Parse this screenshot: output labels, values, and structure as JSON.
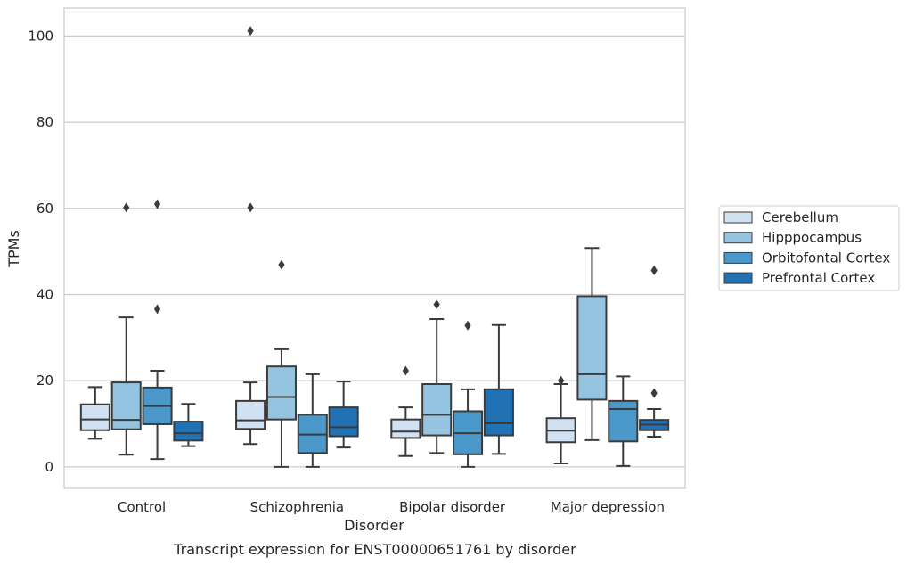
{
  "caption": "Transcript expression for ENST00000651761 by disorder",
  "chart_data": {
    "type": "box",
    "xlabel": "Disorder",
    "ylabel": "TPMs",
    "ylim": [
      -5,
      106.5
    ],
    "yticks": [
      0,
      20,
      40,
      60,
      80,
      100
    ],
    "yticklabels": [
      "0",
      "20",
      "40",
      "60",
      "80",
      "100"
    ],
    "grid": "horizontal",
    "legend_position": "right",
    "categories": [
      "Control",
      "Schizophrenia",
      "Bipolar disorder",
      "Major depression"
    ],
    "series": [
      {
        "name": "Cerebellum",
        "color": "#d0e1f2",
        "boxes": [
          {
            "whislo": 6.5,
            "q1": 8.5,
            "med": 11,
            "q3": 14.5,
            "whishi": 18.5,
            "fliers": []
          },
          {
            "whislo": 5.3,
            "q1": 8.8,
            "med": 10.8,
            "q3": 15.3,
            "whishi": 19.6,
            "fliers": [
              101.2,
              60.2
            ]
          },
          {
            "whislo": 2.5,
            "q1": 6.7,
            "med": 8.2,
            "q3": 11,
            "whishi": 13.8,
            "fliers": [
              22.3
            ]
          },
          {
            "whislo": 0.8,
            "q1": 5.7,
            "med": 8.4,
            "q3": 11.3,
            "whishi": 19.2,
            "fliers": [
              20
            ]
          }
        ]
      },
      {
        "name": "Hipppocampus",
        "color": "#94c4df",
        "boxes": [
          {
            "whislo": 2.8,
            "q1": 8.7,
            "med": 10.9,
            "q3": 19.6,
            "whishi": 34.7,
            "fliers": [
              60.2
            ]
          },
          {
            "whislo": 0,
            "q1": 11,
            "med": 16.2,
            "q3": 23.3,
            "whishi": 27.3,
            "fliers": [
              46.9
            ]
          },
          {
            "whislo": 3.2,
            "q1": 7.3,
            "med": 12.1,
            "q3": 19.2,
            "whishi": 34.3,
            "fliers": [
              37.7
            ]
          },
          {
            "whislo": 6.2,
            "q1": 15.6,
            "med": 21.5,
            "q3": 39.6,
            "whishi": 50.8,
            "fliers": []
          }
        ]
      },
      {
        "name": "Orbitofontal Cortex",
        "color": "#4a98c9",
        "boxes": [
          {
            "whislo": 1.8,
            "q1": 9.9,
            "med": 14.1,
            "q3": 18.4,
            "whishi": 22.3,
            "fliers": [
              61,
              36.6
            ]
          },
          {
            "whislo": 0,
            "q1": 3.2,
            "med": 7.5,
            "q3": 12.1,
            "whishi": 21.5,
            "fliers": []
          },
          {
            "whislo": 0,
            "q1": 2.9,
            "med": 7.8,
            "q3": 12.9,
            "whishi": 18,
            "fliers": [
              32.8
            ]
          },
          {
            "whislo": 0.2,
            "q1": 5.9,
            "med": 13.4,
            "q3": 15.3,
            "whishi": 21,
            "fliers": []
          }
        ]
      },
      {
        "name": "Prefrontal Cortex",
        "color": "#2171b5",
        "boxes": [
          {
            "whislo": 4.8,
            "q1": 6.1,
            "med": 7.8,
            "q3": 10.5,
            "whishi": 14.6,
            "fliers": []
          },
          {
            "whislo": 4.5,
            "q1": 7.1,
            "med": 9.2,
            "q3": 13.8,
            "whishi": 19.8,
            "fliers": []
          },
          {
            "whislo": 3,
            "q1": 7.3,
            "med": 10.1,
            "q3": 18,
            "whishi": 32.9,
            "fliers": []
          },
          {
            "whislo": 7,
            "q1": 8.5,
            "med": 9.8,
            "q3": 10.9,
            "whishi": 13.4,
            "fliers": [
              45.6,
              17.1
            ]
          }
        ]
      }
    ]
  }
}
